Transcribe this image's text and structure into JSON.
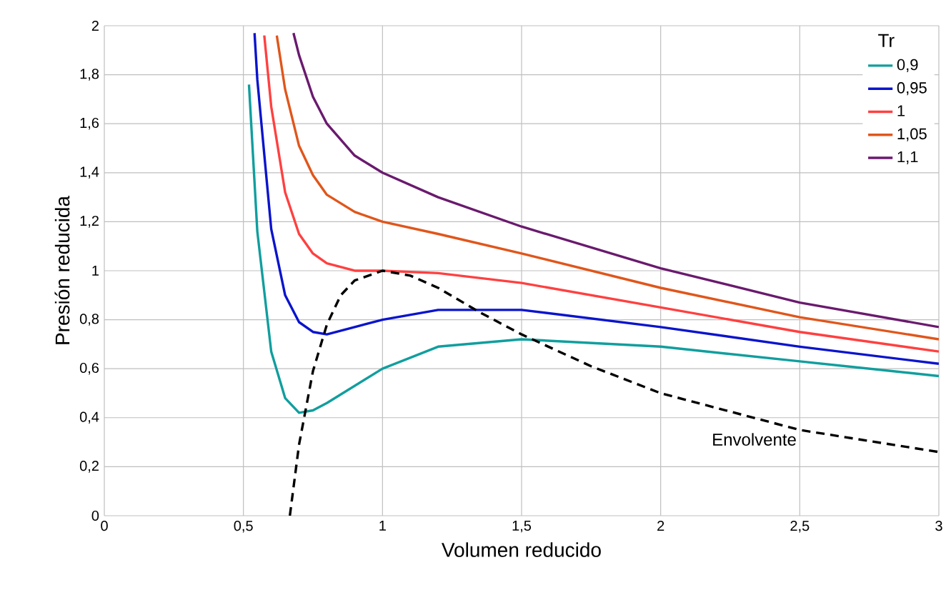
{
  "chart_data": {
    "type": "line",
    "xlabel": "Volumen reducido",
    "ylabel": "Presión reducida",
    "legend_title": "Tr",
    "legend": "top right",
    "grid": true,
    "xlim": [
      0,
      3
    ],
    "ylim": [
      0,
      2
    ],
    "xticks": [
      0,
      {
        "value": 0.5,
        "label": "0,5"
      },
      1,
      {
        "value": 1.5,
        "label": "1,5"
      },
      2,
      {
        "value": 2.5,
        "label": "2,5"
      },
      3
    ],
    "yticks": [
      0,
      {
        "value": 0.2,
        "label": "0,2"
      },
      {
        "value": 0.4,
        "label": "0,4"
      },
      {
        "value": 0.6,
        "label": "0,6"
      },
      {
        "value": 0.8,
        "label": "0,8"
      },
      1,
      {
        "value": 1.2,
        "label": "1,2"
      },
      {
        "value": 1.4,
        "label": "1,4"
      },
      {
        "value": 1.6,
        "label": "1,6"
      },
      {
        "value": 1.8,
        "label": "1,8"
      },
      2
    ],
    "annotations": [
      {
        "text": "Envolvente",
        "x": 2.5,
        "y": 0.35
      }
    ],
    "series": [
      {
        "name": "0,9",
        "color": "#119e9e",
        "x": [
          0.52,
          0.55,
          0.6,
          0.65,
          0.7,
          0.75,
          0.8,
          0.9,
          1.0,
          1.2,
          1.5,
          2.0,
          2.5,
          3.0
        ],
        "values": [
          1.76,
          1.16,
          0.67,
          0.48,
          0.42,
          0.43,
          0.46,
          0.53,
          0.6,
          0.69,
          0.72,
          0.69,
          0.63,
          0.57
        ]
      },
      {
        "name": "0,95",
        "color": "#0a14cc",
        "x": [
          0.54,
          0.55,
          0.6,
          0.65,
          0.7,
          0.75,
          0.8,
          0.9,
          1.0,
          1.2,
          1.5,
          2.0,
          2.5,
          3.0
        ],
        "values": [
          1.97,
          1.78,
          1.17,
          0.9,
          0.79,
          0.75,
          0.74,
          0.77,
          0.8,
          0.84,
          0.84,
          0.77,
          0.69,
          0.62
        ]
      },
      {
        "name": "1",
        "color": "#ff4040",
        "x": [
          0.575,
          0.6,
          0.65,
          0.7,
          0.75,
          0.8,
          0.9,
          1.0,
          1.2,
          1.5,
          2.0,
          2.5,
          3.0
        ],
        "values": [
          1.96,
          1.67,
          1.32,
          1.15,
          1.07,
          1.03,
          1.0,
          1.0,
          0.99,
          0.95,
          0.85,
          0.75,
          0.67
        ]
      },
      {
        "name": "1,05",
        "color": "#e0561b",
        "x": [
          0.62,
          0.65,
          0.7,
          0.75,
          0.8,
          0.9,
          1.0,
          1.2,
          1.5,
          2.0,
          2.5,
          3.0
        ],
        "values": [
          1.96,
          1.74,
          1.51,
          1.39,
          1.31,
          1.24,
          1.2,
          1.15,
          1.07,
          0.93,
          0.81,
          0.72
        ]
      },
      {
        "name": "1,1",
        "color": "#6a1a6e",
        "x": [
          0.68,
          0.7,
          0.75,
          0.8,
          0.9,
          1.0,
          1.2,
          1.5,
          2.0,
          2.5,
          3.0
        ],
        "values": [
          1.97,
          1.88,
          1.71,
          1.6,
          1.47,
          1.4,
          1.3,
          1.18,
          1.01,
          0.87,
          0.77
        ]
      },
      {
        "type": "line",
        "color": "#000000",
        "line_style": "dashed",
        "x": [
          0.667,
          0.7,
          0.75,
          0.8,
          0.85,
          0.9,
          1.0,
          1.1,
          1.2,
          1.35,
          1.5,
          1.75,
          2.0,
          2.5,
          3.0
        ],
        "values": [
          0,
          0.29,
          0.59,
          0.78,
          0.9,
          0.96,
          1.0,
          0.98,
          0.93,
          0.83,
          0.74,
          0.61,
          0.5,
          0.35,
          0.26
        ]
      }
    ]
  }
}
